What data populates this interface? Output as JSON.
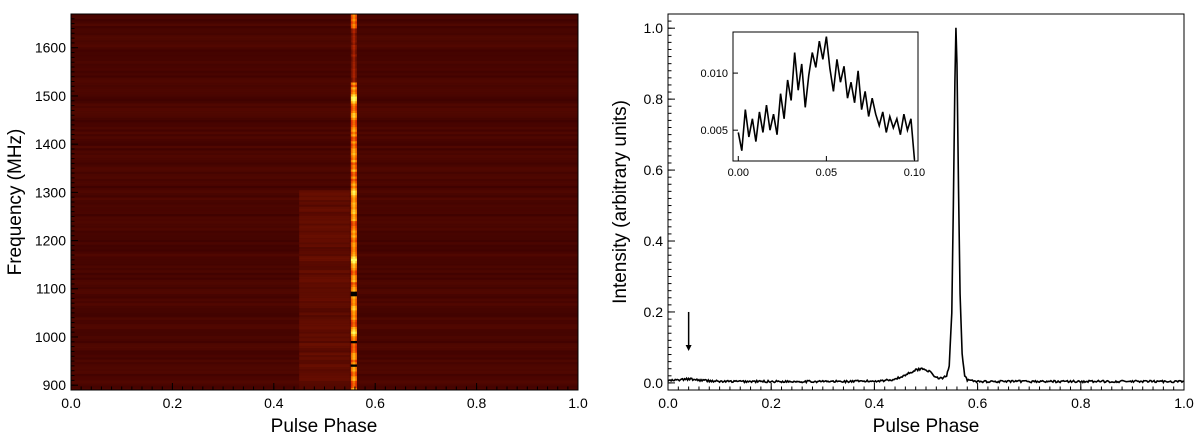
{
  "chart_data": [
    {
      "type": "heatmap",
      "title": "",
      "xlabel": "Pulse Phase",
      "ylabel": "Frequency (MHz)",
      "xlim": [
        0.0,
        1.0
      ],
      "ylim": [
        890,
        1670
      ],
      "xticks": [
        "0.0",
        "0.2",
        "0.4",
        "0.6",
        "0.8",
        "1.0"
      ],
      "yticks": [
        "900",
        "1000",
        "1100",
        "1200",
        "1300",
        "1400",
        "1500",
        "1600"
      ],
      "colormap": [
        "#3a0000",
        "#8b1a00",
        "#e03000",
        "#ff9a00",
        "#ffff60"
      ],
      "pulse_center_phase": 0.558,
      "pulse_width_phase": 0.012,
      "bright_bands_mhz": [
        {
          "f": 1010,
          "level": 0.9
        },
        {
          "f": 1060,
          "level": 0.8
        },
        {
          "f": 1090,
          "level": 0.9
        },
        {
          "f": 1160,
          "level": 1.0
        },
        {
          "f": 1210,
          "level": 0.7
        },
        {
          "f": 1260,
          "level": 0.8
        },
        {
          "f": 1300,
          "level": 0.9
        },
        {
          "f": 1380,
          "level": 0.7
        },
        {
          "f": 1460,
          "level": 0.8
        },
        {
          "f": 1495,
          "level": 1.0
        },
        {
          "f": 1660,
          "level": 0.5
        }
      ],
      "dark_bands_mhz": [
        940,
        990,
        1090
      ],
      "interpulse_phase_range": [
        0.45,
        0.55
      ],
      "grid": false
    },
    {
      "type": "line",
      "title": "",
      "xlabel": "Pulse Phase",
      "ylabel": "Intensity (arbitrary units)",
      "xlim": [
        0.0,
        1.0
      ],
      "ylim": [
        -0.02,
        1.04
      ],
      "xticks": [
        "0.0",
        "0.2",
        "0.4",
        "0.6",
        "0.8",
        "1.0"
      ],
      "yticks": [
        "0.0",
        "0.2",
        "0.4",
        "0.6",
        "0.8",
        "1.0"
      ],
      "series": [
        {
          "x": [
            0.0,
            0.02,
            0.04,
            0.06,
            0.08,
            0.1,
            0.15,
            0.2,
            0.25,
            0.3,
            0.35,
            0.4,
            0.43,
            0.45,
            0.47,
            0.48,
            0.49,
            0.5,
            0.51,
            0.52,
            0.53,
            0.54,
            0.545,
            0.55,
            0.553,
            0.556,
            0.558,
            0.56,
            0.563,
            0.566,
            0.57,
            0.575,
            0.58,
            0.6,
            0.65,
            0.7,
            0.75,
            0.8,
            0.85,
            0.9,
            0.95,
            1.0
          ],
          "y": [
            0.006,
            0.008,
            0.011,
            0.008,
            0.006,
            0.004,
            0.004,
            0.004,
            0.004,
            0.004,
            0.004,
            0.005,
            0.008,
            0.015,
            0.03,
            0.036,
            0.04,
            0.038,
            0.028,
            0.015,
            0.012,
            0.02,
            0.05,
            0.2,
            0.5,
            0.85,
            1.0,
            0.9,
            0.55,
            0.25,
            0.08,
            0.02,
            0.008,
            0.004,
            0.004,
            0.004,
            0.004,
            0.004,
            0.004,
            0.004,
            0.004,
            0.004
          ]
        }
      ],
      "annotation": {
        "type": "arrow",
        "x": 0.04,
        "y_from": 0.2,
        "y_to": 0.09
      }
    },
    {
      "type": "line",
      "title": "",
      "inset": true,
      "xlim": [
        -0.003,
        0.102
      ],
      "ylim": [
        0.0023,
        0.0136
      ],
      "xticks": [
        "0.00",
        "0.05",
        "0.10"
      ],
      "yticks": [
        "0.005",
        "0.010"
      ],
      "series": [
        {
          "x": [
            0.0,
            0.002,
            0.004,
            0.006,
            0.008,
            0.01,
            0.012,
            0.014,
            0.016,
            0.018,
            0.02,
            0.022,
            0.024,
            0.026,
            0.028,
            0.03,
            0.032,
            0.034,
            0.036,
            0.038,
            0.04,
            0.042,
            0.044,
            0.046,
            0.048,
            0.05,
            0.052,
            0.054,
            0.056,
            0.058,
            0.06,
            0.062,
            0.064,
            0.066,
            0.068,
            0.07,
            0.072,
            0.074,
            0.076,
            0.078,
            0.08,
            0.082,
            0.084,
            0.086,
            0.088,
            0.09,
            0.092,
            0.094,
            0.096,
            0.098,
            0.1
          ],
          "y": [
            0.0048,
            0.0032,
            0.0068,
            0.0044,
            0.006,
            0.004,
            0.0066,
            0.0048,
            0.0072,
            0.005,
            0.0064,
            0.0046,
            0.0082,
            0.006,
            0.0094,
            0.0076,
            0.0118,
            0.0085,
            0.0108,
            0.007,
            0.0098,
            0.0118,
            0.0105,
            0.0128,
            0.0112,
            0.0132,
            0.0104,
            0.0084,
            0.0112,
            0.0092,
            0.0106,
            0.0078,
            0.0092,
            0.0074,
            0.0102,
            0.0068,
            0.0084,
            0.0062,
            0.0078,
            0.0064,
            0.0054,
            0.0066,
            0.0048,
            0.0062,
            0.0052,
            0.006,
            0.0046,
            0.0064,
            0.005,
            0.006,
            0.0024
          ]
        }
      ]
    }
  ]
}
